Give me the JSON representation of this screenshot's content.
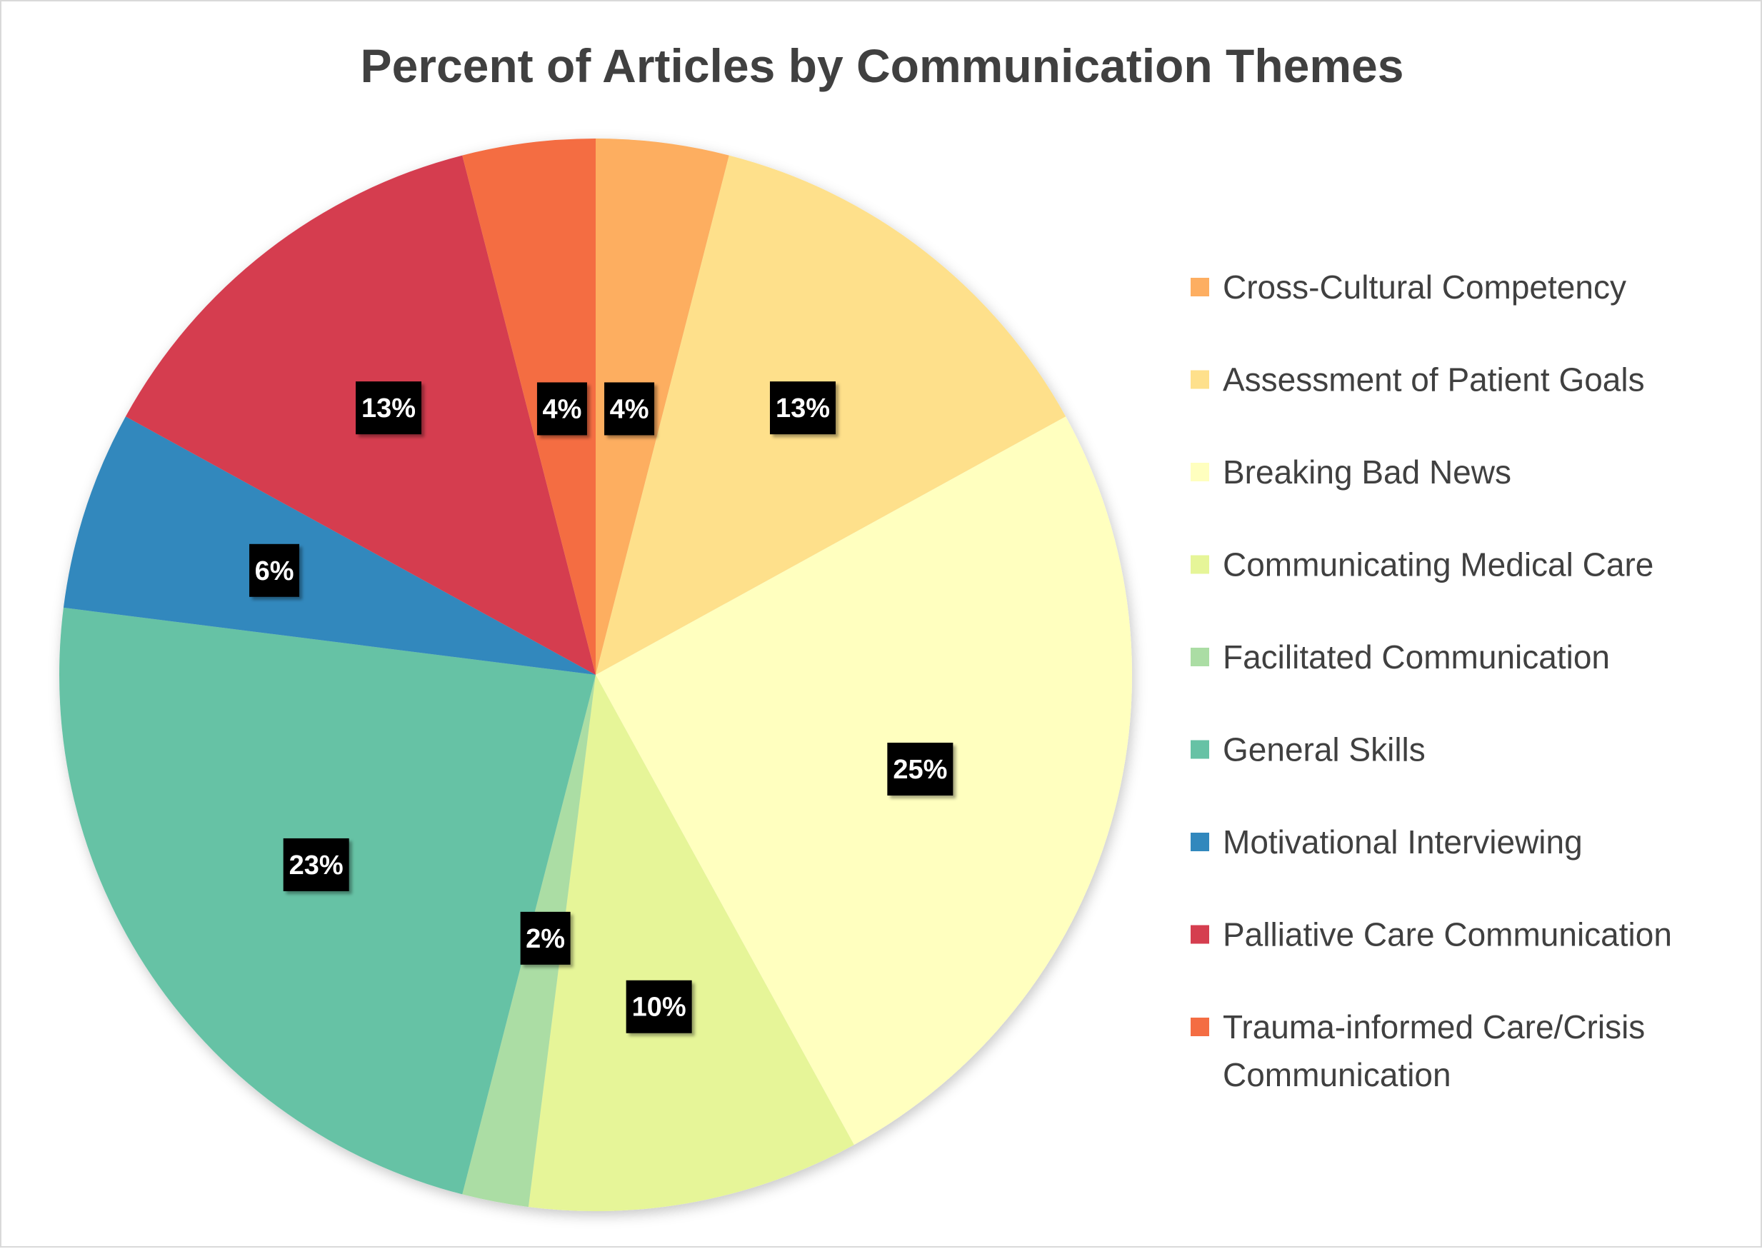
{
  "chart_data": {
    "type": "pie",
    "title": "Percent of Articles by Communication Themes",
    "legend_position": "right",
    "start_angle_deg": 0,
    "direction": "clockwise",
    "slices": [
      {
        "name": "Cross-Cultural Competency",
        "value": 4,
        "label": "4%",
        "color": "#fdae61"
      },
      {
        "name": "Assessment of Patient Goals",
        "value": 13,
        "label": "13%",
        "color": "#fee08b"
      },
      {
        "name": "Breaking Bad News",
        "value": 25,
        "label": "25%",
        "color": "#ffffbf"
      },
      {
        "name": "Communicating Medical Care",
        "value": 10,
        "label": "10%",
        "color": "#e6f598"
      },
      {
        "name": "Facilitated Communication",
        "value": 2,
        "label": "2%",
        "color": "#abdda4"
      },
      {
        "name": "General Skills",
        "value": 23,
        "label": "23%",
        "color": "#66c2a5"
      },
      {
        "name": "Motivational Interviewing",
        "value": 6,
        "label": "6%",
        "color": "#3288bd"
      },
      {
        "name": "Palliative Care Communication",
        "value": 13,
        "label": "13%",
        "color": "#d53e4f"
      },
      {
        "name": "Trauma-informed Care/Crisis Communication",
        "legend_lines": [
          "Trauma-informed Care/Crisis",
          "Communication"
        ],
        "value": 4,
        "label": "4%",
        "color": "#f46d43"
      }
    ]
  }
}
